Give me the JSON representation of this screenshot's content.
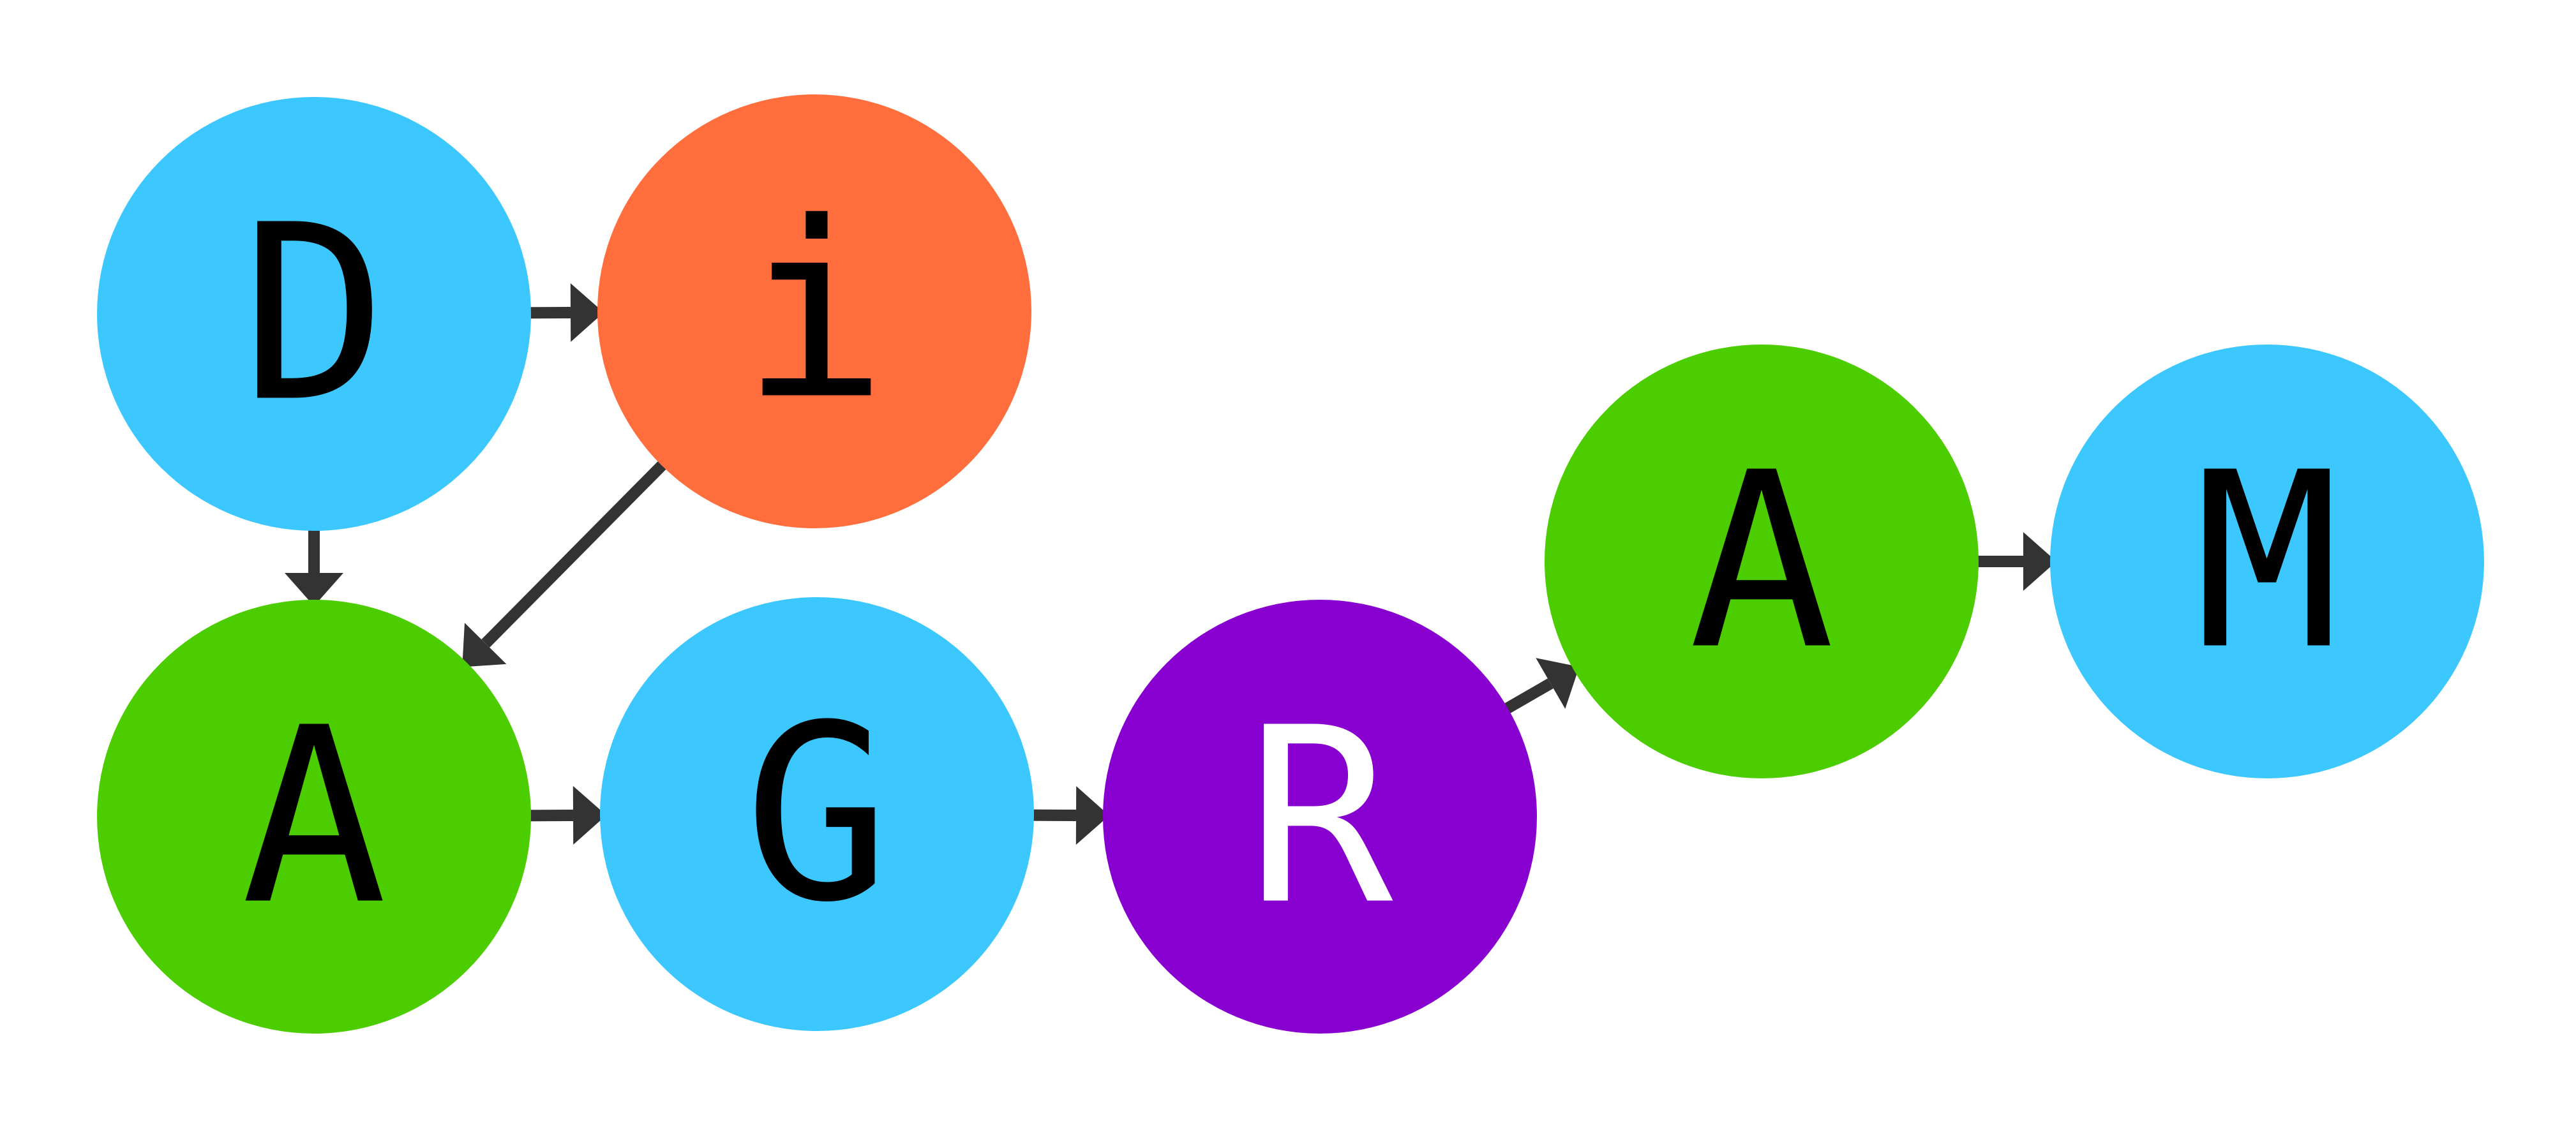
{
  "diagram": {
    "nodes": [
      {
        "id": "n1",
        "label": "D",
        "fill": "#3cc8ff",
        "text_color": "#000000"
      },
      {
        "id": "n2",
        "label": "i",
        "fill": "#ff6e3c",
        "text_color": "#000000"
      },
      {
        "id": "n3",
        "label": "A",
        "fill": "#4bcd00",
        "text_color": "#000000"
      },
      {
        "id": "n4",
        "label": "G",
        "fill": "#3cc8ff",
        "text_color": "#000000"
      },
      {
        "id": "n5",
        "label": "R",
        "fill": "#8700d0",
        "text_color": "#ffffff"
      },
      {
        "id": "n6",
        "label": "A",
        "fill": "#4bcd00",
        "text_color": "#000000"
      },
      {
        "id": "n7",
        "label": "M",
        "fill": "#3cc8ff",
        "text_color": "#000000"
      }
    ],
    "edges": [
      {
        "from": "n1",
        "to": "n2"
      },
      {
        "from": "n1",
        "to": "n3"
      },
      {
        "from": "n2",
        "to": "n3"
      },
      {
        "from": "n3",
        "to": "n4"
      },
      {
        "from": "n4",
        "to": "n5"
      },
      {
        "from": "n5",
        "to": "n6"
      },
      {
        "from": "n6",
        "to": "n7"
      }
    ],
    "edge_color": "#333333"
  }
}
